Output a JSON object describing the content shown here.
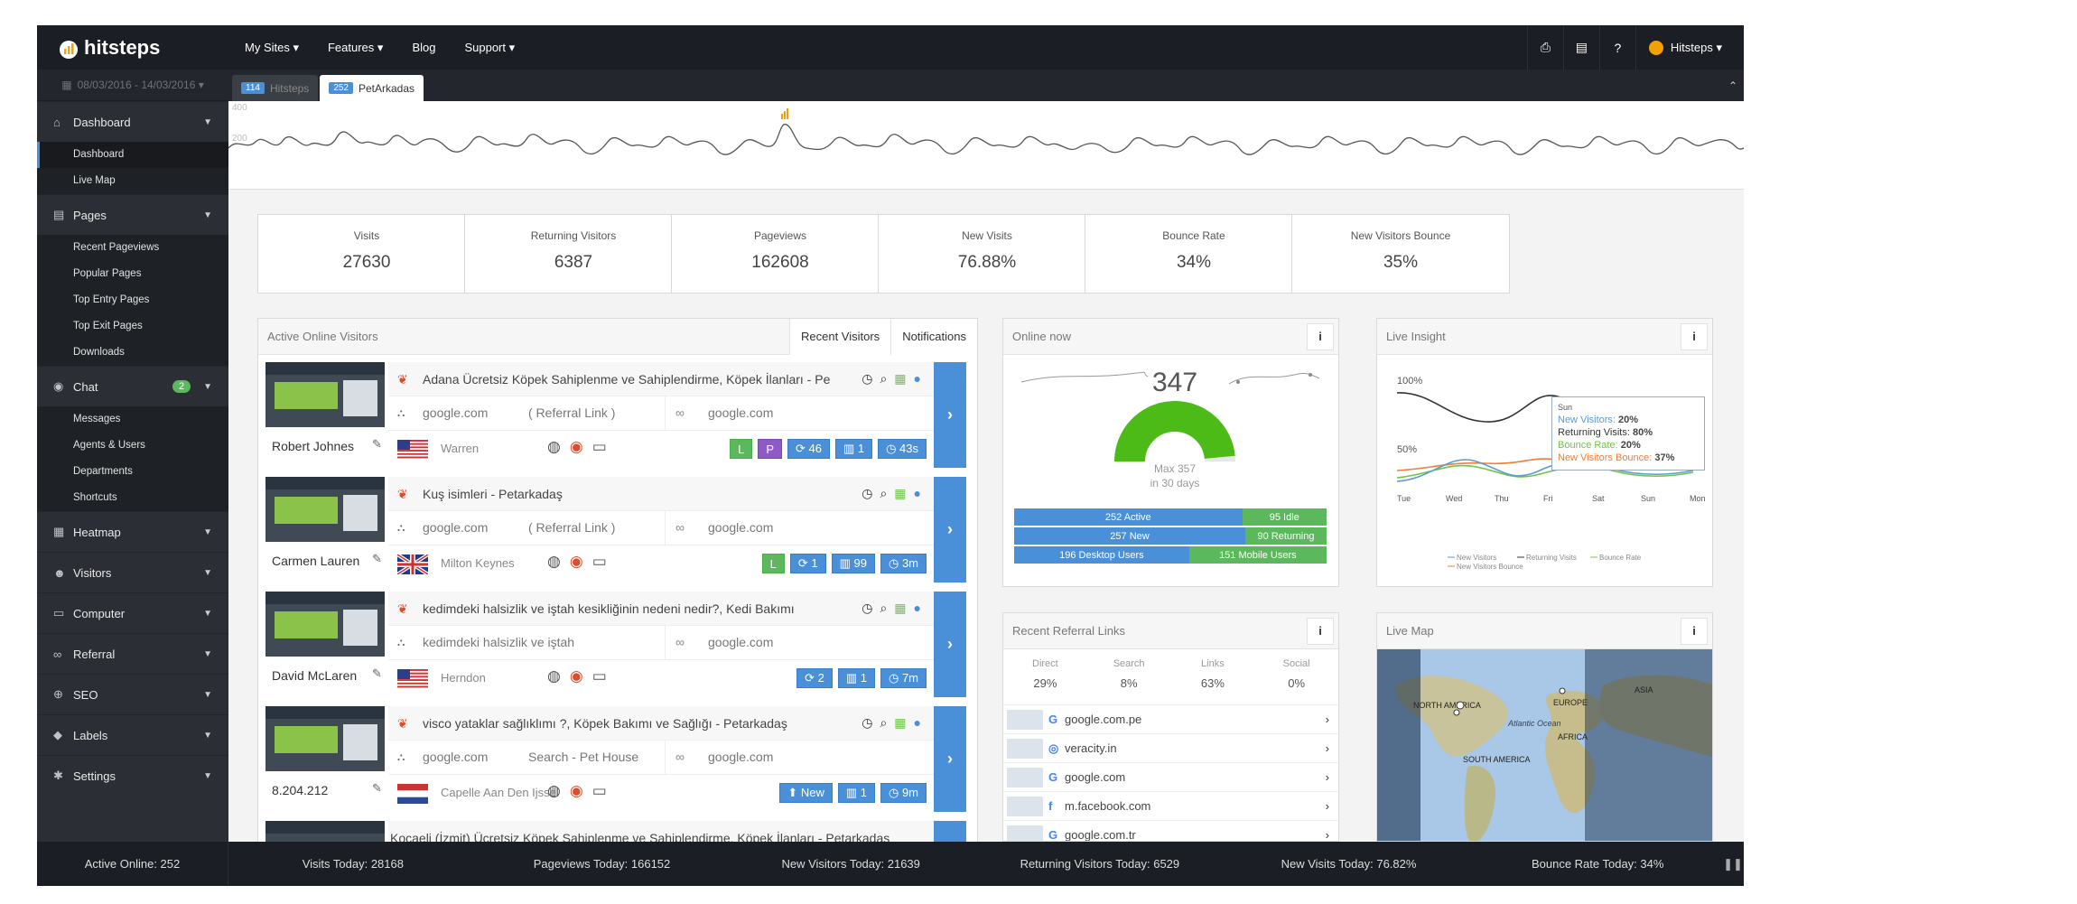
{
  "brand": "hitsteps",
  "nav": [
    "My Sites ▾",
    "Features ▾",
    "Blog",
    "Support ▾"
  ],
  "topbar": {
    "help": "?",
    "user": "Hitsteps ▾"
  },
  "sidebar": {
    "date_range": "08/03/2016 - 14/03/2016 ▾",
    "sections": [
      {
        "label": "Dashboard",
        "icon": "home-icon",
        "items": [
          "Dashboard",
          "Live Map"
        ]
      },
      {
        "label": "Pages",
        "icon": "file-icon",
        "items": [
          "Recent Pageviews",
          "Popular Pages",
          "Top Entry Pages",
          "Top Exit Pages",
          "Downloads"
        ]
      },
      {
        "label": "Chat",
        "icon": "chat-icon",
        "badge": "2",
        "items": [
          "Messages",
          "Agents & Users",
          "Departments",
          "Shortcuts"
        ]
      },
      {
        "label": "Heatmap",
        "icon": "grid-icon",
        "items": []
      },
      {
        "label": "Visitors",
        "icon": "users-icon",
        "items": []
      },
      {
        "label": "Computer",
        "icon": "monitor-icon",
        "items": []
      },
      {
        "label": "Referral",
        "icon": "link-icon",
        "items": []
      },
      {
        "label": "SEO",
        "icon": "search-icon",
        "items": []
      },
      {
        "label": "Labels",
        "icon": "tag-icon",
        "items": []
      },
      {
        "label": "Settings",
        "icon": "gear-icon",
        "items": []
      }
    ]
  },
  "site_tabs": [
    {
      "count": "114",
      "label": "Hitsteps"
    },
    {
      "count": "252",
      "label": "PetArkadas"
    }
  ],
  "spark": {
    "y400": "400",
    "y200": "200"
  },
  "stats": [
    {
      "title": "Visits",
      "value": "27630"
    },
    {
      "title": "Returning Visitors",
      "value": "6387"
    },
    {
      "title": "Pageviews",
      "value": "162608"
    },
    {
      "title": "New Visits",
      "value": "76.88%"
    },
    {
      "title": "Bounce Rate",
      "value": "34%"
    },
    {
      "title": "New Visitors Bounce",
      "value": "35%"
    }
  ],
  "active": {
    "title": "Active Online Visitors",
    "tabs": [
      "Recent Visitors",
      "Notifications"
    ],
    "rows": [
      {
        "name": "Robert Johnes",
        "title": "Adana Ücretsiz Köpek Sahiplenme ve Sahiplendirme, Köpek İlanları - Pe",
        "src": "google.com",
        "link": "( Referral Link )",
        "src2": "google.com",
        "city": "Warren",
        "flag": "us",
        "pills": [
          [
            "L",
            "g"
          ],
          [
            "P",
            "p"
          ],
          [
            "⟳ 46",
            ""
          ],
          [
            "▥ 1",
            ""
          ],
          [
            "◷ 43s",
            ""
          ]
        ]
      },
      {
        "name": "Carmen Lauren",
        "title": "Kuş isimleri - Petarkadaş",
        "src": "google.com",
        "link": "( Referral Link )",
        "src2": "google.com",
        "city": "Milton Keynes",
        "flag": "uk",
        "pills": [
          [
            "L",
            "g"
          ],
          [
            "⟳ 1",
            ""
          ],
          [
            "▥ 99",
            ""
          ],
          [
            "◷ 3m",
            ""
          ]
        ]
      },
      {
        "name": "David McLaren",
        "title": "kedimdeki halsizlik ve iştah kesikliğinin nedeni nedir?, Kedi Bakımı",
        "src": "kedimdeki halsizlik ve iştah",
        "link": "",
        "src2": "google.com",
        "city": "Herndon",
        "flag": "us",
        "pills": [
          [
            "⟳ 2",
            ""
          ],
          [
            "▥ 1",
            ""
          ],
          [
            "◷ 7m",
            ""
          ]
        ]
      },
      {
        "name": "8.204.212",
        "title": "visco yataklar sağlıklımı ?, Köpek Bakımı ve Sağlığı - Petarkadaş",
        "src": "google.com",
        "link": "Search - Pet House",
        "src2": "google.com",
        "city": "Capelle Aan Den Ijssel",
        "flag": "nl",
        "pills": [
          [
            "⬆ New",
            ""
          ],
          [
            "▥ 1",
            ""
          ],
          [
            "◷ 9m",
            ""
          ]
        ]
      }
    ],
    "partial_title": "Kocaeli (İzmit) Ücretsiz Köpek Sahiplenme ve Sahiplendirme, Köpek İlanları - Petarkadaş"
  },
  "online": {
    "title": "Online now",
    "value": "347",
    "max": "Max 357",
    "period": "in 30 days",
    "gauge_fraction": 0.97,
    "bars": [
      {
        "a": "252 Active",
        "b": "95 Idle",
        "frac": 0.73
      },
      {
        "a": "257 New",
        "b": "90 Returning",
        "frac": 0.74
      },
      {
        "a": "196 Desktop Users",
        "b": "151 Mobile Users",
        "frac": 0.56
      }
    ]
  },
  "insight": {
    "title": "Live Insight",
    "y100": "100%",
    "y50": "50%",
    "days": [
      "Tue",
      "Wed",
      "Thu",
      "Fri",
      "Sat",
      "Sun",
      "Mon"
    ],
    "tooltip": {
      "day": "Sun",
      "nv_label": "New Visitors:",
      "nv": "20%",
      "rv_label": "Returning Visits:",
      "rv": "80%",
      "br_label": "Bounce Rate:",
      "br": "20%",
      "nvb_label": "New Visitors Bounce:",
      "nvb": "37%"
    },
    "legend": [
      "New Visitors",
      "Returning Visits",
      "Bounce Rate",
      "New Visitors Bounce"
    ]
  },
  "referral": {
    "title": "Recent Referral Links",
    "stats": [
      {
        "l": "Direct",
        "v": "29%"
      },
      {
        "l": "Search",
        "v": "8%"
      },
      {
        "l": "Links",
        "v": "63%"
      },
      {
        "l": "Social",
        "v": "0%"
      }
    ],
    "links": [
      {
        "g": "G",
        "t": "google.com.pe"
      },
      {
        "g": "◎",
        "t": "veracity.in"
      },
      {
        "g": "G",
        "t": "google.com"
      },
      {
        "g": "f",
        "t": "m.facebook.com"
      },
      {
        "g": "G",
        "t": "google.com.tr"
      }
    ]
  },
  "livemap": {
    "title": "Live Map",
    "labels": [
      "NORTH AMERICA",
      "EUROPE",
      "ASIA",
      "AFRICA",
      "SOUTH AMERICA",
      "Atlantic Ocean"
    ]
  },
  "footer": {
    "active": "Active Online: 252",
    "items": [
      "Visits Today: 28168",
      "Pageviews Today: 166152",
      "New Visitors Today: 21639",
      "Returning Visitors Today: 6529",
      "New Visits Today: 76.82%",
      "Bounce Rate Today: 34%"
    ]
  },
  "colors": {
    "accent": "#4a90d9",
    "green": "#5cb85c",
    "gauge": "#4cbb17"
  }
}
